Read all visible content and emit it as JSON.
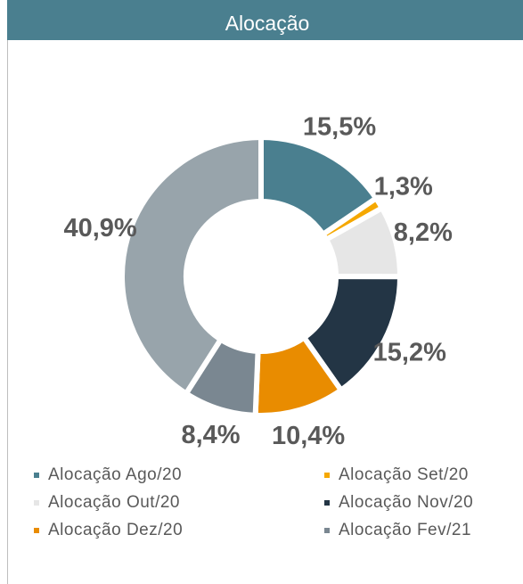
{
  "chart_data": {
    "type": "donut",
    "title": "Alocação",
    "categories": [
      "Alocação Ago/20",
      "Alocação Set/20",
      "Alocação Out/20",
      "Alocação Nov/20",
      "Alocação Dez/20",
      "Alocação Fev/21",
      null
    ],
    "values": [
      15.5,
      1.3,
      8.2,
      15.2,
      10.4,
      8.4,
      40.9
    ],
    "value_labels": [
      "15,5%",
      "1,3%",
      "8,2%",
      "15,2%",
      "10,4%",
      "8,4%",
      "40,9%"
    ],
    "colors": [
      "#4a7f8f",
      "#f5a800",
      "#e6e6e6",
      "#233545",
      "#e98c00",
      "#7a8791",
      "#98a4ab"
    ],
    "legend": "bottom"
  }
}
